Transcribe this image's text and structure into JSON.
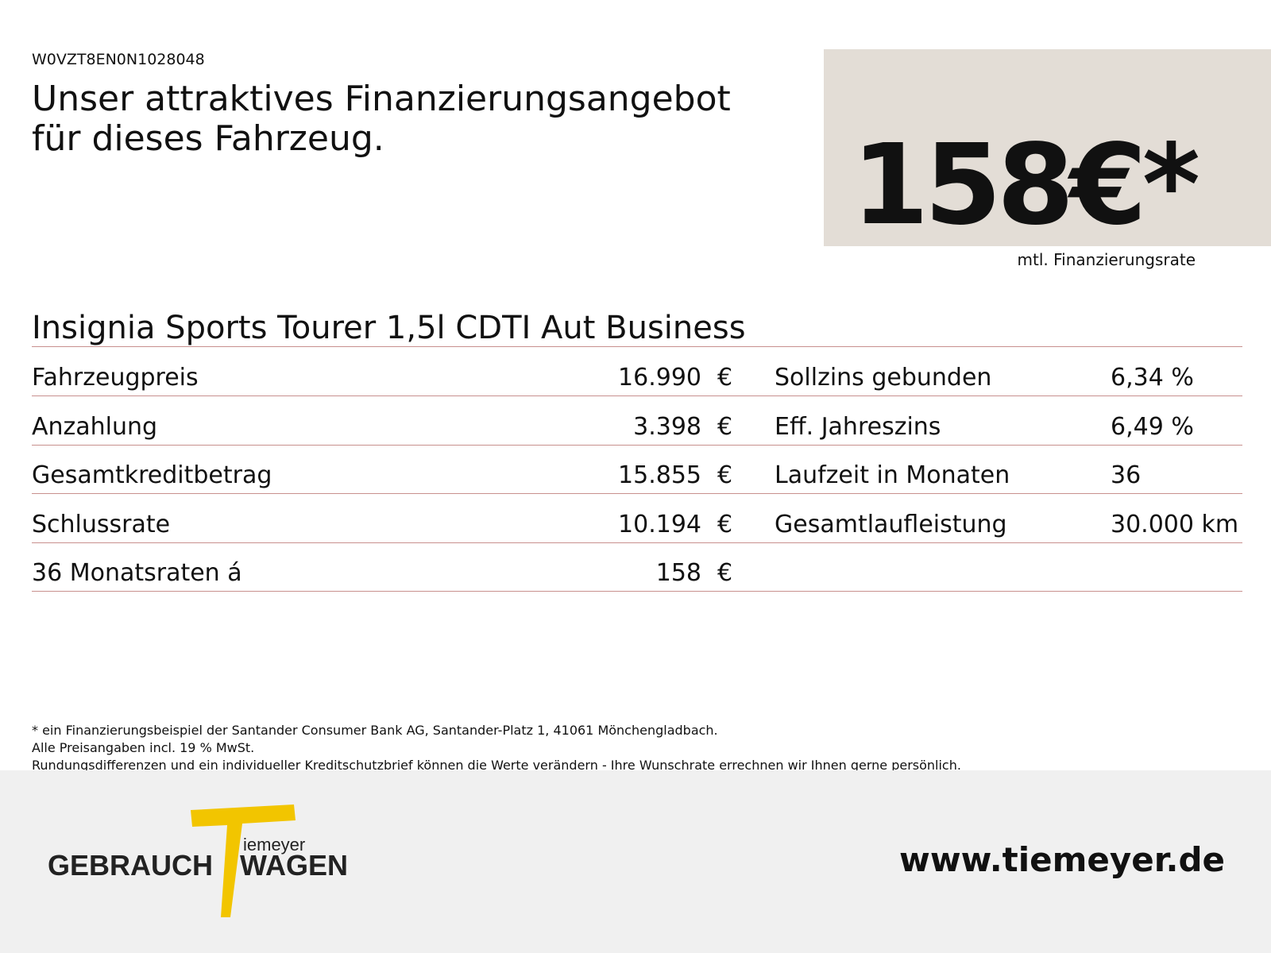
{
  "header": {
    "vin": "W0VZT8EN0N1028048",
    "title_lines": [
      "Unser attraktives Finanzierungsangebot",
      "für dieses Fahrzeug."
    ]
  },
  "price_box": {
    "amount": "158€*",
    "label": "mtl. Finanzierungsrate"
  },
  "vehicle": {
    "name": "Insignia Sports Tourer 1,5l CDTI Aut Business"
  },
  "table": {
    "left": [
      [
        "Fahrzeugpreis",
        "16.990",
        "€"
      ],
      [
        "Anzahlung",
        "3.398",
        "€"
      ],
      [
        "Gesamtkreditbetrag",
        "15.855",
        "€"
      ],
      [
        "Schlussrate",
        "10.194",
        "€"
      ],
      [
        "36 Monatsraten á",
        "158",
        "€"
      ]
    ],
    "right": [
      [
        "Sollzins gebunden",
        "6,34 %"
      ],
      [
        "Eff. Jahreszins",
        "6,49 %"
      ],
      [
        "Laufzeit in Monaten",
        "36"
      ],
      [
        "Gesamtlaufleistung",
        "30.000 km"
      ]
    ]
  },
  "footnotes": [
    "* ein Finanzierungsbeispiel der Santander Consumer Bank AG, Santander-Platz 1, 41061 Mönchengladbach.",
    "Alle Preisangaben incl. 19 % MwSt.",
    "Rundungsdifferenzen und ein individueller Kreditschutzbrief können die Werte verändern - Ihre Wunschrate errechnen wir Ihnen gerne persönlich."
  ],
  "footer": {
    "logo": {
      "script": "iemeyer",
      "left": "GEBRAUCH",
      "right": "WAGEN"
    },
    "url": "www.tiemeyer.de"
  }
}
